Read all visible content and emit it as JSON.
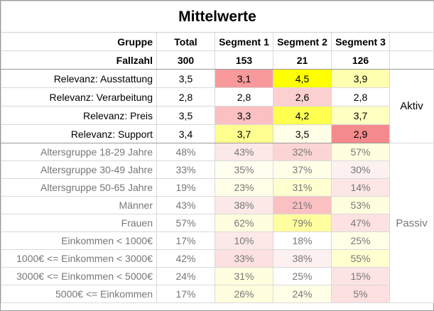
{
  "title": "Mittelwerte",
  "header": {
    "group_label": "Gruppe",
    "columns": [
      "Total",
      "Segment 1",
      "Segment 2",
      "Segment 3"
    ],
    "count_label": "Fallzahl",
    "counts": [
      "300",
      "153",
      "21",
      "126"
    ]
  },
  "aktiv": {
    "group_label": "Aktiv",
    "rows": [
      {
        "label": "Relevanz: Ausstattung",
        "total": "3,5",
        "cells": [
          {
            "value": "3,1",
            "color": "#f8999b"
          },
          {
            "value": "4,5",
            "color": "#ffff00"
          },
          {
            "value": "3,9",
            "color": "#ffffb0"
          }
        ]
      },
      {
        "label": "Relevanz: Verarbeitung",
        "total": "2,8",
        "cells": [
          {
            "value": "2,8",
            "color": "#ffffff"
          },
          {
            "value": "2,6",
            "color": "#fcd0d0"
          },
          {
            "value": "2,8",
            "color": "#ffffff"
          }
        ]
      },
      {
        "label": "Relevanz: Preis",
        "total": "3,5",
        "cells": [
          {
            "value": "3,3",
            "color": "#fbc0c1"
          },
          {
            "value": "4,2",
            "color": "#ffff50"
          },
          {
            "value": "3,7",
            "color": "#ffffc0"
          }
        ]
      },
      {
        "label": "Relevanz: Support",
        "total": "3,4",
        "cells": [
          {
            "value": "3,7",
            "color": "#ffff90"
          },
          {
            "value": "3,5",
            "color": "#ffffe8"
          },
          {
            "value": "2,9",
            "color": "#f58a8c"
          }
        ]
      }
    ]
  },
  "passiv": {
    "group_label": "Passiv",
    "rows": [
      {
        "label": "Altersgruppe 18-29 Jahre",
        "total": "48%",
        "cells": [
          {
            "value": "43%",
            "color": "#fde8e8"
          },
          {
            "value": "32%",
            "color": "#fbd4d5"
          },
          {
            "value": "57%",
            "color": "#ffffe0"
          }
        ]
      },
      {
        "label": "Altersgruppe 30-49 Jahre",
        "total": "33%",
        "cells": [
          {
            "value": "35%",
            "color": "#fffff0"
          },
          {
            "value": "37%",
            "color": "#ffffe8"
          },
          {
            "value": "30%",
            "color": "#fdf0f0"
          }
        ]
      },
      {
        "label": "Altersgruppe 50-65 Jahre",
        "total": "19%",
        "cells": [
          {
            "value": "23%",
            "color": "#ffffe8"
          },
          {
            "value": "31%",
            "color": "#ffffd0"
          },
          {
            "value": "14%",
            "color": "#fde6e6"
          }
        ]
      },
      {
        "label": "Männer",
        "total": "43%",
        "cells": [
          {
            "value": "38%",
            "color": "#fde8e8"
          },
          {
            "value": "21%",
            "color": "#fbc0c1"
          },
          {
            "value": "53%",
            "color": "#ffffe0"
          }
        ]
      },
      {
        "label": "Frauen",
        "total": "57%",
        "cells": [
          {
            "value": "62%",
            "color": "#ffffe0"
          },
          {
            "value": "79%",
            "color": "#ffffa0"
          },
          {
            "value": "47%",
            "color": "#fde2e2"
          }
        ]
      },
      {
        "label": "Einkommen < 1000€",
        "total": "17%",
        "cells": [
          {
            "value": "10%",
            "color": "#fde8e8"
          },
          {
            "value": "18%",
            "color": "#ffffff"
          },
          {
            "value": "25%",
            "color": "#ffffe8"
          }
        ]
      },
      {
        "label": "1000€ <= Einkommen < 3000€",
        "total": "42%",
        "cells": [
          {
            "value": "33%",
            "color": "#fde0e0"
          },
          {
            "value": "38%",
            "color": "#fdf0f0"
          },
          {
            "value": "55%",
            "color": "#ffffd0"
          }
        ]
      },
      {
        "label": "3000€ <= Einkommen < 5000€",
        "total": "24%",
        "cells": [
          {
            "value": "31%",
            "color": "#ffffe0"
          },
          {
            "value": "25%",
            "color": "#ffffff"
          },
          {
            "value": "15%",
            "color": "#fde4e4"
          }
        ]
      },
      {
        "label": "5000€ <= Einkommen",
        "total": "17%",
        "cells": [
          {
            "value": "26%",
            "color": "#ffffe0"
          },
          {
            "value": "24%",
            "color": "#ffffe8"
          },
          {
            "value": "5%",
            "color": "#fde0e0"
          }
        ]
      }
    ]
  }
}
